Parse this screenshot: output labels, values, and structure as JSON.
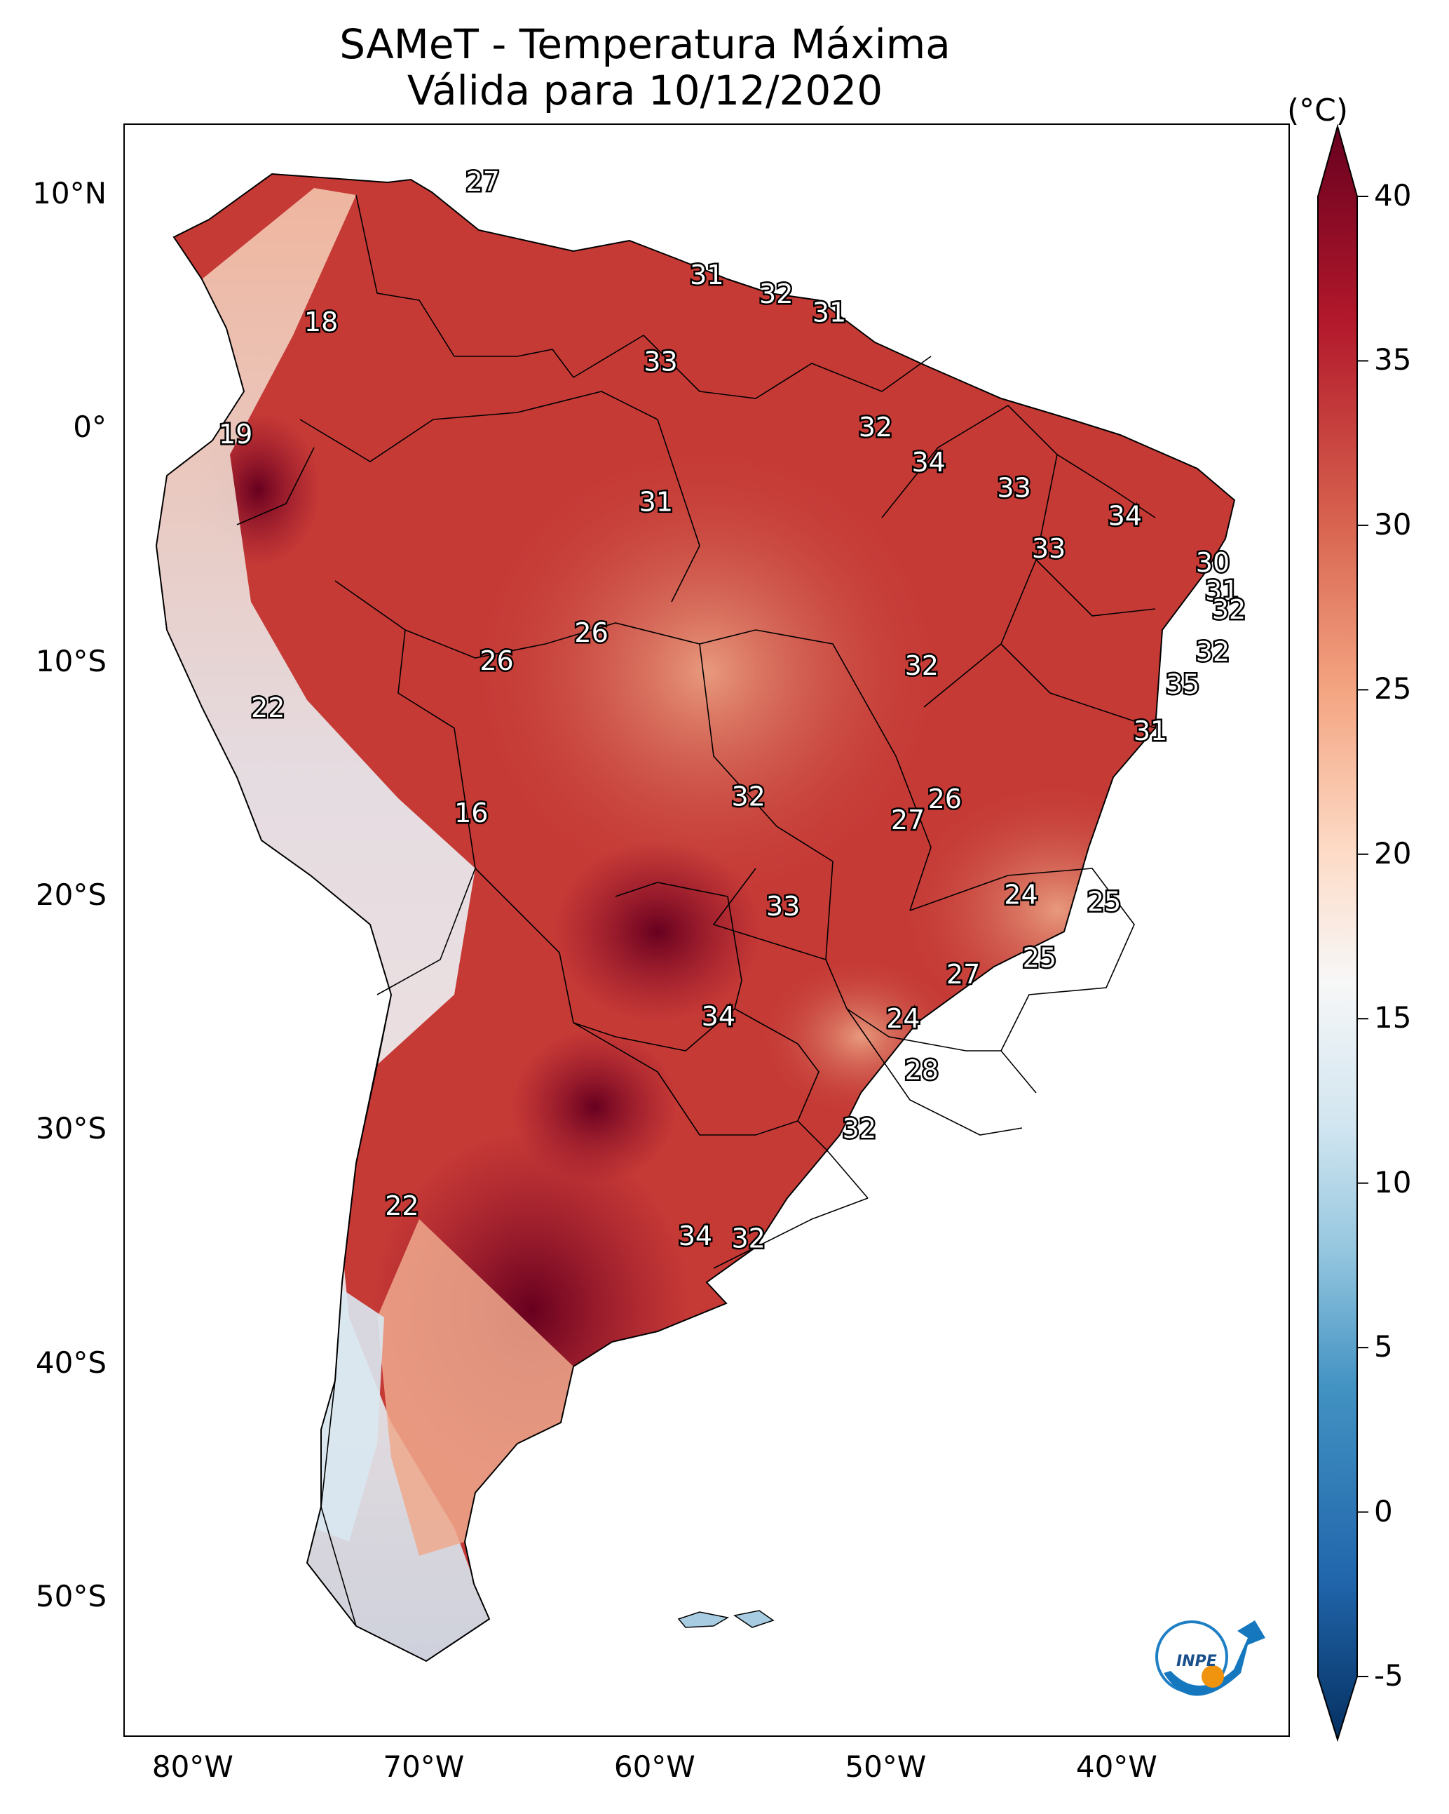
{
  "title": {
    "line1": "SAMeT - Temperatura Máxima",
    "line2": "Válida para 10/12/2020"
  },
  "latitude_ticks": [
    "10°N",
    "0°",
    "10°S",
    "20°S",
    "30°S",
    "40°S",
    "50°S"
  ],
  "longitude_ticks": [
    "80°W",
    "70°W",
    "60°W",
    "50°W",
    "40°W"
  ],
  "colorbar": {
    "unit": "(°C)",
    "range": [
      -5,
      40
    ],
    "tick_labels": [
      "40",
      "35",
      "30",
      "25",
      "20",
      "15",
      "10",
      "5",
      "0",
      "-5"
    ],
    "colors": [
      "#053061",
      "#2166ac",
      "#4393c3",
      "#92c5de",
      "#d1e5f0",
      "#f7f7f7",
      "#fddbc7",
      "#f4a582",
      "#d6604d",
      "#b2182b",
      "#67001f"
    ]
  },
  "temperature_labels": [
    {
      "text": "27",
      "lon": -67.5,
      "lat": 10.5
    },
    {
      "text": "18",
      "lon": -74.5,
      "lat": 4.5
    },
    {
      "text": "31",
      "lon": -57.8,
      "lat": 6.5
    },
    {
      "text": "32",
      "lon": -54.8,
      "lat": 5.7
    },
    {
      "text": "31",
      "lon": -52.5,
      "lat": 4.9
    },
    {
      "text": "33",
      "lon": -59.8,
      "lat": 2.8
    },
    {
      "text": "19",
      "lon": -78.2,
      "lat": -0.3
    },
    {
      "text": "32",
      "lon": -50.5,
      "lat": 0.0
    },
    {
      "text": "34",
      "lon": -48.2,
      "lat": -1.5
    },
    {
      "text": "33",
      "lon": -44.5,
      "lat": -2.6
    },
    {
      "text": "31",
      "lon": -60.0,
      "lat": -3.2
    },
    {
      "text": "34",
      "lon": -39.7,
      "lat": -3.8
    },
    {
      "text": "33",
      "lon": -43.0,
      "lat": -5.2
    },
    {
      "text": "30",
      "lon": -35.9,
      "lat": -5.8
    },
    {
      "text": "31",
      "lon": -35.5,
      "lat": -7.0
    },
    {
      "text": "32",
      "lon": -35.2,
      "lat": -7.8
    },
    {
      "text": "26",
      "lon": -62.8,
      "lat": -8.8
    },
    {
      "text": "26",
      "lon": -66.9,
      "lat": -10.0
    },
    {
      "text": "32",
      "lon": -48.5,
      "lat": -10.2
    },
    {
      "text": "32",
      "lon": -35.9,
      "lat": -9.6
    },
    {
      "text": "35",
      "lon": -37.2,
      "lat": -11.0
    },
    {
      "text": "22",
      "lon": -76.8,
      "lat": -12.0
    },
    {
      "text": "31",
      "lon": -38.6,
      "lat": -13.0
    },
    {
      "text": "32",
      "lon": -56.0,
      "lat": -15.8
    },
    {
      "text": "26",
      "lon": -47.5,
      "lat": -15.9
    },
    {
      "text": "16",
      "lon": -68.0,
      "lat": -16.5
    },
    {
      "text": "27",
      "lon": -49.1,
      "lat": -16.8
    },
    {
      "text": "24",
      "lon": -44.2,
      "lat": -20.0
    },
    {
      "text": "25",
      "lon": -40.6,
      "lat": -20.3
    },
    {
      "text": "33",
      "lon": -54.5,
      "lat": -20.5
    },
    {
      "text": "25",
      "lon": -43.4,
      "lat": -22.7
    },
    {
      "text": "27",
      "lon": -46.7,
      "lat": -23.4
    },
    {
      "text": "34",
      "lon": -57.3,
      "lat": -25.2
    },
    {
      "text": "24",
      "lon": -49.3,
      "lat": -25.3
    },
    {
      "text": "28",
      "lon": -48.5,
      "lat": -27.5
    },
    {
      "text": "32",
      "lon": -51.2,
      "lat": -30.0
    },
    {
      "text": "22",
      "lon": -71.0,
      "lat": -33.3
    },
    {
      "text": "34",
      "lon": -58.3,
      "lat": -34.6
    },
    {
      "text": "32",
      "lon": -56.0,
      "lat": -34.7
    }
  ],
  "logo": {
    "text": "INPE"
  }
}
